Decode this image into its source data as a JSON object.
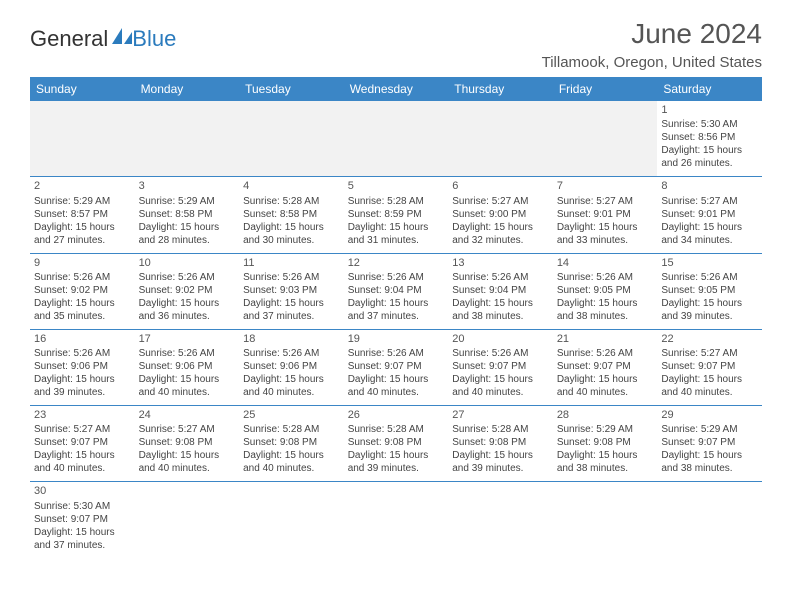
{
  "logo": {
    "text1": "General",
    "text2": "Blue"
  },
  "month_title": "June 2024",
  "location": "Tillamook, Oregon, United States",
  "colors": {
    "header_bg": "#3b86c6",
    "header_fg": "#ffffff",
    "rule": "#3b86c6",
    "blank_bg": "#f2f2f2",
    "text": "#444444",
    "title": "#555555",
    "logo_blue": "#2b7bbd"
  },
  "day_headers": [
    "Sunday",
    "Monday",
    "Tuesday",
    "Wednesday",
    "Thursday",
    "Friday",
    "Saturday"
  ],
  "weeks": [
    [
      null,
      null,
      null,
      null,
      null,
      null,
      {
        "n": "1",
        "sr": "Sunrise: 5:30 AM",
        "ss": "Sunset: 8:56 PM",
        "d1": "Daylight: 15 hours",
        "d2": "and 26 minutes."
      }
    ],
    [
      {
        "n": "2",
        "sr": "Sunrise: 5:29 AM",
        "ss": "Sunset: 8:57 PM",
        "d1": "Daylight: 15 hours",
        "d2": "and 27 minutes."
      },
      {
        "n": "3",
        "sr": "Sunrise: 5:29 AM",
        "ss": "Sunset: 8:58 PM",
        "d1": "Daylight: 15 hours",
        "d2": "and 28 minutes."
      },
      {
        "n": "4",
        "sr": "Sunrise: 5:28 AM",
        "ss": "Sunset: 8:58 PM",
        "d1": "Daylight: 15 hours",
        "d2": "and 30 minutes."
      },
      {
        "n": "5",
        "sr": "Sunrise: 5:28 AM",
        "ss": "Sunset: 8:59 PM",
        "d1": "Daylight: 15 hours",
        "d2": "and 31 minutes."
      },
      {
        "n": "6",
        "sr": "Sunrise: 5:27 AM",
        "ss": "Sunset: 9:00 PM",
        "d1": "Daylight: 15 hours",
        "d2": "and 32 minutes."
      },
      {
        "n": "7",
        "sr": "Sunrise: 5:27 AM",
        "ss": "Sunset: 9:01 PM",
        "d1": "Daylight: 15 hours",
        "d2": "and 33 minutes."
      },
      {
        "n": "8",
        "sr": "Sunrise: 5:27 AM",
        "ss": "Sunset: 9:01 PM",
        "d1": "Daylight: 15 hours",
        "d2": "and 34 minutes."
      }
    ],
    [
      {
        "n": "9",
        "sr": "Sunrise: 5:26 AM",
        "ss": "Sunset: 9:02 PM",
        "d1": "Daylight: 15 hours",
        "d2": "and 35 minutes."
      },
      {
        "n": "10",
        "sr": "Sunrise: 5:26 AM",
        "ss": "Sunset: 9:02 PM",
        "d1": "Daylight: 15 hours",
        "d2": "and 36 minutes."
      },
      {
        "n": "11",
        "sr": "Sunrise: 5:26 AM",
        "ss": "Sunset: 9:03 PM",
        "d1": "Daylight: 15 hours",
        "d2": "and 37 minutes."
      },
      {
        "n": "12",
        "sr": "Sunrise: 5:26 AM",
        "ss": "Sunset: 9:04 PM",
        "d1": "Daylight: 15 hours",
        "d2": "and 37 minutes."
      },
      {
        "n": "13",
        "sr": "Sunrise: 5:26 AM",
        "ss": "Sunset: 9:04 PM",
        "d1": "Daylight: 15 hours",
        "d2": "and 38 minutes."
      },
      {
        "n": "14",
        "sr": "Sunrise: 5:26 AM",
        "ss": "Sunset: 9:05 PM",
        "d1": "Daylight: 15 hours",
        "d2": "and 38 minutes."
      },
      {
        "n": "15",
        "sr": "Sunrise: 5:26 AM",
        "ss": "Sunset: 9:05 PM",
        "d1": "Daylight: 15 hours",
        "d2": "and 39 minutes."
      }
    ],
    [
      {
        "n": "16",
        "sr": "Sunrise: 5:26 AM",
        "ss": "Sunset: 9:06 PM",
        "d1": "Daylight: 15 hours",
        "d2": "and 39 minutes."
      },
      {
        "n": "17",
        "sr": "Sunrise: 5:26 AM",
        "ss": "Sunset: 9:06 PM",
        "d1": "Daylight: 15 hours",
        "d2": "and 40 minutes."
      },
      {
        "n": "18",
        "sr": "Sunrise: 5:26 AM",
        "ss": "Sunset: 9:06 PM",
        "d1": "Daylight: 15 hours",
        "d2": "and 40 minutes."
      },
      {
        "n": "19",
        "sr": "Sunrise: 5:26 AM",
        "ss": "Sunset: 9:07 PM",
        "d1": "Daylight: 15 hours",
        "d2": "and 40 minutes."
      },
      {
        "n": "20",
        "sr": "Sunrise: 5:26 AM",
        "ss": "Sunset: 9:07 PM",
        "d1": "Daylight: 15 hours",
        "d2": "and 40 minutes."
      },
      {
        "n": "21",
        "sr": "Sunrise: 5:26 AM",
        "ss": "Sunset: 9:07 PM",
        "d1": "Daylight: 15 hours",
        "d2": "and 40 minutes."
      },
      {
        "n": "22",
        "sr": "Sunrise: 5:27 AM",
        "ss": "Sunset: 9:07 PM",
        "d1": "Daylight: 15 hours",
        "d2": "and 40 minutes."
      }
    ],
    [
      {
        "n": "23",
        "sr": "Sunrise: 5:27 AM",
        "ss": "Sunset: 9:07 PM",
        "d1": "Daylight: 15 hours",
        "d2": "and 40 minutes."
      },
      {
        "n": "24",
        "sr": "Sunrise: 5:27 AM",
        "ss": "Sunset: 9:08 PM",
        "d1": "Daylight: 15 hours",
        "d2": "and 40 minutes."
      },
      {
        "n": "25",
        "sr": "Sunrise: 5:28 AM",
        "ss": "Sunset: 9:08 PM",
        "d1": "Daylight: 15 hours",
        "d2": "and 40 minutes."
      },
      {
        "n": "26",
        "sr": "Sunrise: 5:28 AM",
        "ss": "Sunset: 9:08 PM",
        "d1": "Daylight: 15 hours",
        "d2": "and 39 minutes."
      },
      {
        "n": "27",
        "sr": "Sunrise: 5:28 AM",
        "ss": "Sunset: 9:08 PM",
        "d1": "Daylight: 15 hours",
        "d2": "and 39 minutes."
      },
      {
        "n": "28",
        "sr": "Sunrise: 5:29 AM",
        "ss": "Sunset: 9:08 PM",
        "d1": "Daylight: 15 hours",
        "d2": "and 38 minutes."
      },
      {
        "n": "29",
        "sr": "Sunrise: 5:29 AM",
        "ss": "Sunset: 9:07 PM",
        "d1": "Daylight: 15 hours",
        "d2": "and 38 minutes."
      }
    ],
    [
      {
        "n": "30",
        "sr": "Sunrise: 5:30 AM",
        "ss": "Sunset: 9:07 PM",
        "d1": "Daylight: 15 hours",
        "d2": "and 37 minutes."
      },
      null,
      null,
      null,
      null,
      null,
      null
    ]
  ]
}
